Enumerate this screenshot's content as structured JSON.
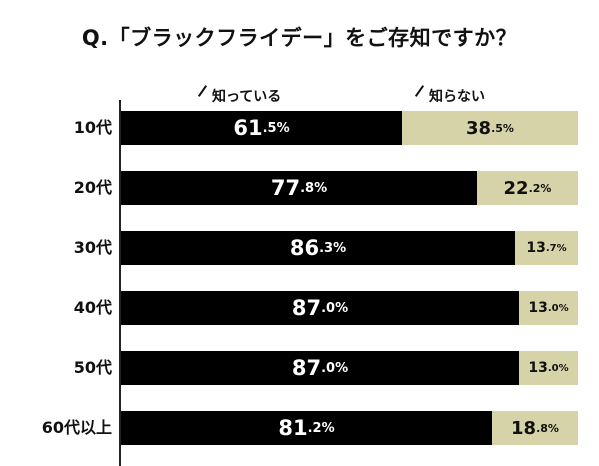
{
  "title": "Q.「ブラックフライデー」をご存知ですか？",
  "colors": {
    "know": "#000000",
    "dont_know": "#d7d3a8"
  },
  "legend": {
    "know": "知っている",
    "dont_know": "知らない"
  },
  "chart_data": {
    "type": "bar",
    "orientation": "horizontal",
    "stacked": true,
    "normalized_to": 100,
    "title": "Q.「ブラックフライデー」をご存知ですか？",
    "categories": [
      "10代",
      "20代",
      "30代",
      "40代",
      "50代",
      "60代以上"
    ],
    "series": [
      {
        "name": "知っている",
        "values": [
          61.5,
          77.8,
          86.3,
          87.0,
          87.0,
          81.2
        ]
      },
      {
        "name": "知らない",
        "values": [
          38.5,
          22.2,
          13.7,
          13.0,
          13.0,
          18.8
        ]
      }
    ],
    "value_labels": {
      "know": [
        {
          "int": "61",
          "dec": ".5%"
        },
        {
          "int": "77",
          "dec": ".8%"
        },
        {
          "int": "86",
          "dec": ".3%"
        },
        {
          "int": "87",
          "dec": ".0%"
        },
        {
          "int": "87",
          "dec": ".0%"
        },
        {
          "int": "81",
          "dec": ".2%"
        }
      ],
      "dont_know": [
        {
          "int": "38",
          "dec": ".5%"
        },
        {
          "int": "22",
          "dec": ".2%"
        },
        {
          "int": "13",
          "dec": ".7%"
        },
        {
          "int": "13",
          "dec": ".0%"
        },
        {
          "int": "13",
          "dec": ".0%"
        },
        {
          "int": "18",
          "dec": ".8%"
        }
      ]
    },
    "xlim": [
      0,
      100
    ],
    "grid": false,
    "legend_position": "top"
  }
}
